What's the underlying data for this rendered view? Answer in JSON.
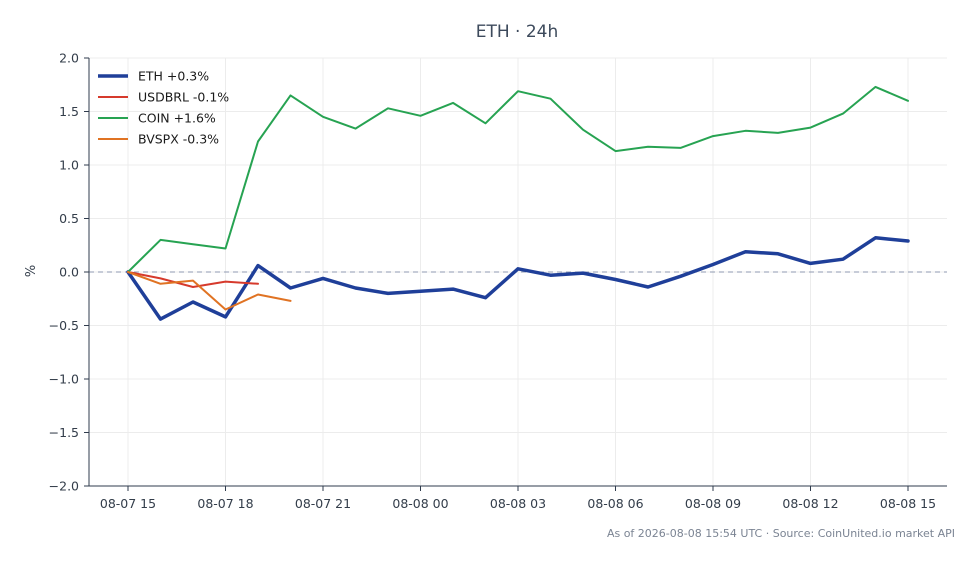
{
  "chart_data": {
    "type": "line",
    "title": "ETH · 24h",
    "ylabel": "%",
    "xlabel": "",
    "ylim": [
      -2.0,
      2.0
    ],
    "yticks": [
      "2.0",
      "1.5",
      "1.0",
      "0.5",
      "0.0",
      "−0.5",
      "−1.0",
      "−1.5",
      "−2.0"
    ],
    "ytick_values": [
      2.0,
      1.5,
      1.0,
      0.5,
      0.0,
      -0.5,
      -1.0,
      -1.5,
      -2.0
    ],
    "xlim": [
      -1.2,
      25.2
    ],
    "xticks": [
      "08-07 15",
      "08-07 18",
      "08-07 21",
      "08-08 00",
      "08-08 03",
      "08-08 06",
      "08-08 09",
      "08-08 12",
      "08-08 15"
    ],
    "xtick_positions": [
      0,
      3,
      6,
      9,
      12,
      15,
      18,
      21,
      24
    ],
    "grid": true,
    "zero_line": true,
    "legend_position": "top-left",
    "series": [
      {
        "name": "ETH +0.3%",
        "color": "#1f3f99",
        "width": 3.5,
        "x": [
          0,
          1,
          2,
          3,
          4,
          5,
          6,
          7,
          8,
          9,
          10,
          11,
          12,
          13,
          14,
          15,
          16,
          17,
          18,
          19,
          20,
          21,
          22,
          23,
          24
        ],
        "values": [
          0.0,
          -0.44,
          -0.28,
          -0.42,
          0.06,
          -0.15,
          -0.06,
          -0.15,
          -0.2,
          -0.18,
          -0.16,
          -0.24,
          0.03,
          -0.03,
          -0.01,
          -0.07,
          -0.14,
          -0.04,
          0.07,
          0.19,
          0.17,
          0.08,
          0.12,
          0.32,
          0.29
        ]
      },
      {
        "name": "USDBRL -0.1%",
        "color": "#d63a2c",
        "width": 2,
        "x": [
          0,
          1,
          2,
          3,
          4
        ],
        "values": [
          0.0,
          -0.06,
          -0.14,
          -0.09,
          -0.11
        ]
      },
      {
        "name": "COIN +1.6%",
        "color": "#27a352",
        "width": 2,
        "x": [
          0,
          1,
          2,
          3,
          4,
          5,
          6,
          7,
          8,
          9,
          10,
          11,
          12,
          13,
          14,
          15,
          16,
          17,
          18,
          19,
          20,
          21,
          22,
          23,
          24
        ],
        "values": [
          0.0,
          0.3,
          0.26,
          0.22,
          1.22,
          1.65,
          1.45,
          1.34,
          1.53,
          1.46,
          1.58,
          1.39,
          1.69,
          1.62,
          1.33,
          1.13,
          1.17,
          1.16,
          1.27,
          1.32,
          1.3,
          1.35,
          1.48,
          1.73,
          1.6
        ]
      },
      {
        "name": "BVSPX -0.3%",
        "color": "#e07323",
        "width": 2,
        "x": [
          0,
          1,
          2,
          3,
          4,
          5
        ],
        "values": [
          0.0,
          -0.11,
          -0.08,
          -0.35,
          -0.21,
          -0.27
        ]
      }
    ]
  },
  "footer": "As of 2026-08-08 15:54 UTC · Source: CoinUnited.io market API"
}
